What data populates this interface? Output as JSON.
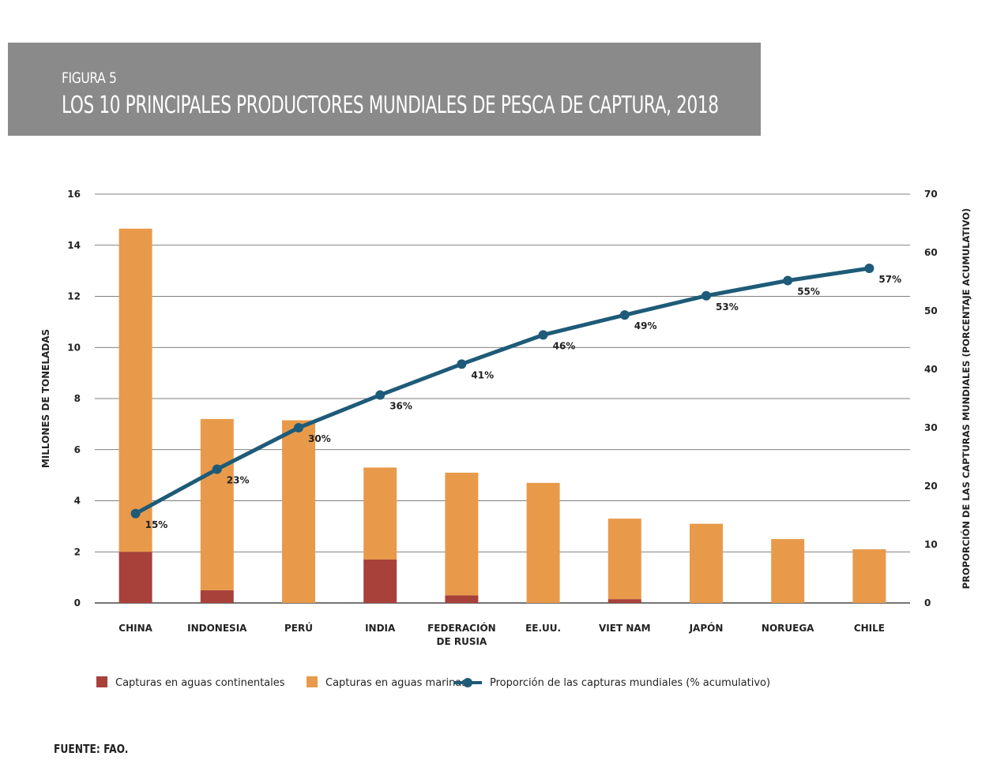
{
  "figure": {
    "label": "FIGURA 5",
    "title": "LOS 10 PRINCIPALES PRODUCTORES MUNDIALES DE PESCA DE CAPTURA, 2018"
  },
  "source": "FUENTE: FAO.",
  "colors": {
    "inland": "#a8413a",
    "marine": "#e89a4a",
    "line": "#1e5b78",
    "banner": "#8a8a8a"
  },
  "chart_data": {
    "type": "bar",
    "stacked": true,
    "categories": [
      [
        "CHINA"
      ],
      [
        "INDONESIA"
      ],
      [
        "PERÚ"
      ],
      [
        "INDIA"
      ],
      [
        "FEDERACIÓN",
        "DE RUSIA"
      ],
      [
        "EE.UU."
      ],
      [
        "VIET NAM"
      ],
      [
        "JAPÓN"
      ],
      [
        "NORUEGA"
      ],
      [
        "CHILE"
      ]
    ],
    "series": [
      {
        "name": "Capturas en aguas continentales",
        "values": [
          2.0,
          0.5,
          0.0,
          1.7,
          0.3,
          0.0,
          0.15,
          0.0,
          0.0,
          0.0
        ]
      },
      {
        "name": "Capturas en aguas marinas",
        "values": [
          12.65,
          6.7,
          7.15,
          3.6,
          4.8,
          4.7,
          3.15,
          3.1,
          2.5,
          2.1
        ]
      }
    ],
    "line_series": {
      "name": "Proporción de las capturas mundiales (% acumulativo)",
      "axis": "right",
      "values": [
        15.3,
        22.9,
        30.0,
        35.6,
        40.9,
        45.9,
        49.3,
        52.6,
        55.2,
        57.3
      ],
      "labels": [
        "15%",
        "23%",
        "30%",
        "36%",
        "41%",
        "46%",
        "49%",
        "53%",
        "55%",
        "57%"
      ]
    },
    "ylabel": "MILLONES DE TONELADAS",
    "y2label": "PROPORCIÓN DE LAS CAPTURAS MUNDIALES (PORCENTAJE ACUMULATIVO)",
    "ylim": [
      0,
      16
    ],
    "yticks": [
      "0",
      "2",
      "4",
      "6",
      "8",
      "10",
      "12",
      "14",
      "16"
    ],
    "y2lim": [
      0,
      70
    ],
    "y2ticks": [
      "0",
      "10",
      "20",
      "30",
      "40",
      "50",
      "60",
      "70"
    ],
    "grid": true,
    "legend_position": "bottom-left"
  }
}
